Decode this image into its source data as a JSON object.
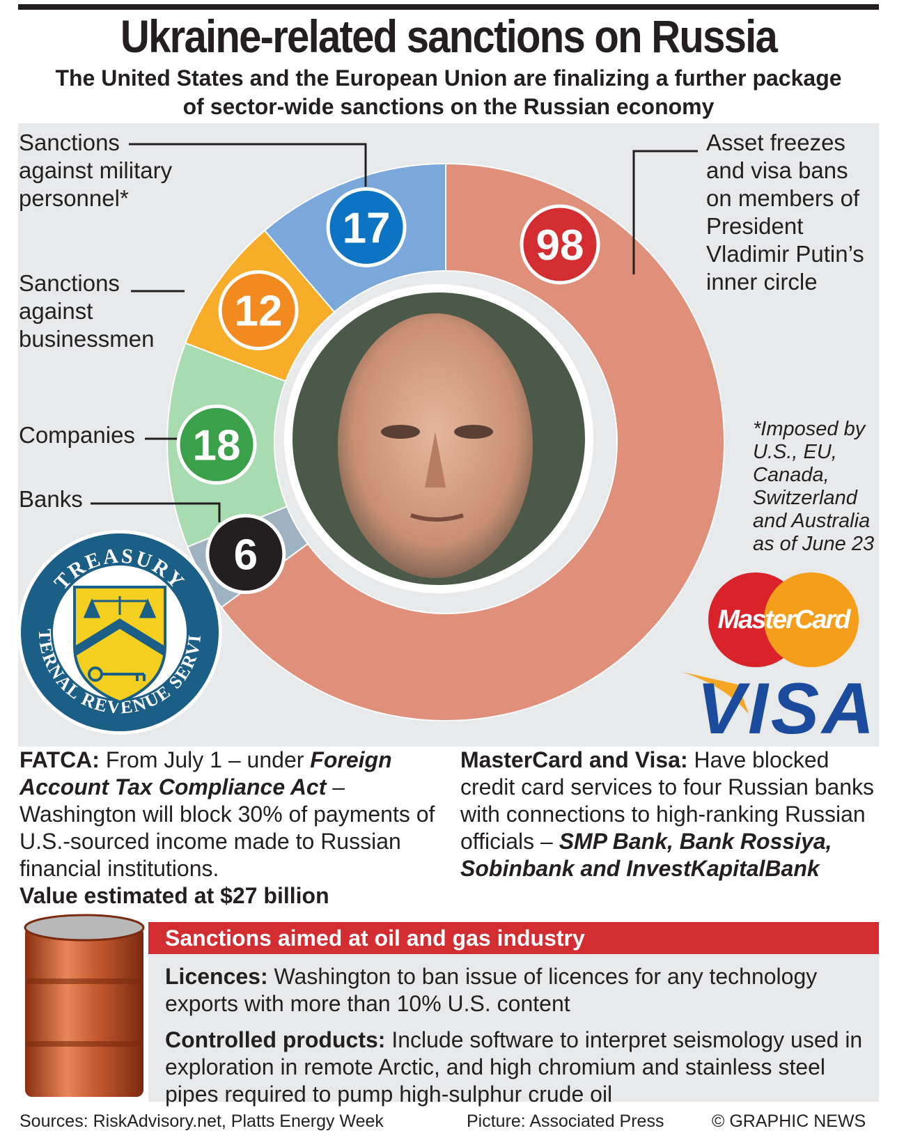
{
  "header": {
    "title": "Ukraine-related sanctions on Russia",
    "subtitle": "The United States and the European Union are finalizing a further package of sector-wide sanctions on the Russian economy"
  },
  "chart_data": {
    "type": "pie",
    "style": "donut",
    "slices": [
      {
        "label": "Asset freezes and visa bans on members of President Vladimir Putin’s inner circle",
        "value": 98,
        "color": "#e0907a",
        "badge_color": "#d42d31"
      },
      {
        "label": "Banks",
        "value": 6,
        "color": "#9fb2c2",
        "badge_color": "#231f20"
      },
      {
        "label": "Companies",
        "value": 18,
        "color": "#a8dbb0",
        "badge_color": "#3aa14a"
      },
      {
        "label": "Sanctions against businessmen",
        "value": 12,
        "color": "#f8ad2a",
        "badge_color": "#f38a1f"
      },
      {
        "label": "Sanctions against military personnel*",
        "value": 17,
        "color": "#7ba8db",
        "badge_color": "#0d74c4"
      }
    ],
    "footnote": "*Imposed by U.S., EU, Canada, Switzerland and Australia as of June 23"
  },
  "annotations": {
    "military": [
      "Sanctions",
      "against military",
      "personnel*"
    ],
    "businessmen": [
      "Sanctions",
      "against",
      "businessmen"
    ],
    "companies": [
      "Companies"
    ],
    "banks": [
      "Banks"
    ],
    "inner_circle": [
      "Asset freezes",
      "and visa bans",
      "on members of",
      "President",
      "Vladimir Putin’s",
      "inner circle"
    ],
    "footnote_lines": [
      "*Imposed by",
      "U.S., EU,",
      "Canada,",
      "Switzerland",
      "and Australia",
      "as of June 23"
    ]
  },
  "logos": {
    "treasury_top": "TREASURY",
    "treasury_bottom": "INTERNAL REVENUE SERVICE",
    "mastercard": "MasterCard",
    "visa": "VISA"
  },
  "fatca": {
    "lead": "FATCA:",
    "text1": " From July 1 – under ",
    "act": "Foreign Account Tax Compliance Act",
    "text2": " – Washington will block 30% of payments of U.S.-sourced income made to Russian financial institutions.",
    "value": "Value estimated at $27 billion"
  },
  "cards": {
    "lead": "MasterCard and Visa:",
    "text": " Have blocked credit card services to four Russian banks with connections to high-ranking Russian officials – ",
    "banks": "SMP Bank, Bank Rossiya, Sobinbank and InvestKapitalBank"
  },
  "oil": {
    "header": "Sanctions aimed at oil and gas industry",
    "licences_lead": "Licences:",
    "licences_text": " Washington to ban issue of licences for any technology exports with more than 10% U.S. content",
    "products_lead": "Controlled products:",
    "products_text": " Include software to interpret seismology used in exploration in remote Arctic, and high chromium and stainless steel pipes required to pump high-sulphur crude oil"
  },
  "footer": {
    "sources": "Sources: RiskAdvisory.net, Platts Energy Week",
    "picture": "Picture: Associated Press",
    "copyright": "© GRAPHIC NEWS"
  }
}
